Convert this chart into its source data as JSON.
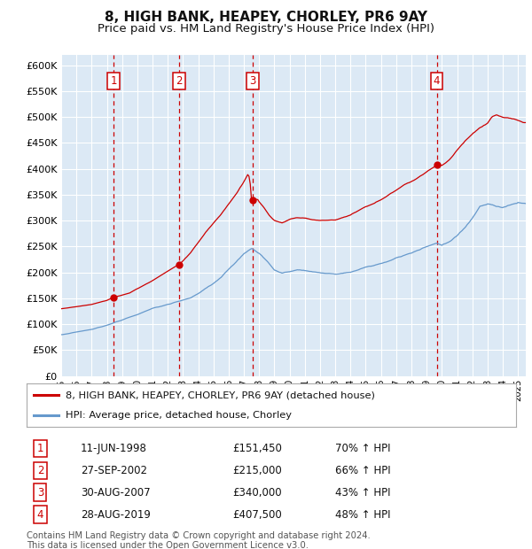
{
  "title": "8, HIGH BANK, HEAPEY, CHORLEY, PR6 9AY",
  "subtitle": "Price paid vs. HM Land Registry's House Price Index (HPI)",
  "ylim": [
    0,
    620000
  ],
  "yticks": [
    0,
    50000,
    100000,
    150000,
    200000,
    250000,
    300000,
    350000,
    400000,
    450000,
    500000,
    550000,
    600000
  ],
  "xlim_start": 1995.0,
  "xlim_end": 2025.5,
  "bg_color": "#dce9f5",
  "grid_color": "#ffffff",
  "sale_points": [
    {
      "year": 1998.44,
      "price": 151450,
      "label": "1"
    },
    {
      "year": 2002.74,
      "price": 215000,
      "label": "2"
    },
    {
      "year": 2007.58,
      "price": 340000,
      "label": "3"
    },
    {
      "year": 2019.66,
      "price": 407500,
      "label": "4"
    }
  ],
  "vline_color": "#cc0000",
  "sale_marker_color": "#cc0000",
  "red_line_color": "#cc0000",
  "blue_line_color": "#6699cc",
  "legend_red_label": "8, HIGH BANK, HEAPEY, CHORLEY, PR6 9AY (detached house)",
  "legend_blue_label": "HPI: Average price, detached house, Chorley",
  "table_data": [
    {
      "num": "1",
      "date": "11-JUN-1998",
      "price": "£151,450",
      "change": "70% ↑ HPI"
    },
    {
      "num": "2",
      "date": "27-SEP-2002",
      "price": "£215,000",
      "change": "66% ↑ HPI"
    },
    {
      "num": "3",
      "date": "30-AUG-2007",
      "price": "£340,000",
      "change": "43% ↑ HPI"
    },
    {
      "num": "4",
      "date": "28-AUG-2019",
      "price": "£407,500",
      "change": "48% ↑ HPI"
    }
  ],
  "footnote": "Contains HM Land Registry data © Crown copyright and database right 2024.\nThis data is licensed under the Open Government Licence v3.0.",
  "title_fontsize": 11,
  "subtitle_fontsize": 9.5
}
